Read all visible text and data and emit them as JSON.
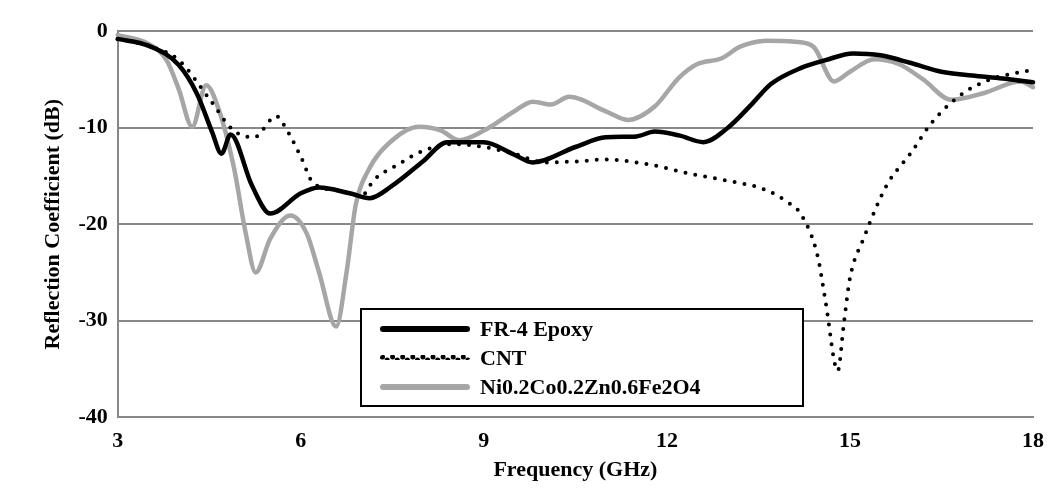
{
  "chart_data": {
    "type": "line",
    "xlabel": "Frequency (GHz)",
    "ylabel": "Reflection Coefficient (dB)",
    "xlim": [
      3,
      18
    ],
    "xticks": [
      3,
      6,
      9,
      12,
      15,
      18
    ],
    "ylim": [
      -40,
      0
    ],
    "yticks": [
      -40,
      -30,
      -20,
      -10,
      0
    ],
    "grid": "y",
    "legend": "bottom",
    "marker": "none",
    "series": [
      {
        "name": "FR-4 Epoxy",
        "color": "#000000",
        "line_style": "solid",
        "x": [
          3,
          3.5,
          4,
          4.3,
          4.55,
          4.7,
          4.85,
          5.2,
          5.5,
          6.0,
          6.3,
          6.8,
          7.13,
          7.5,
          8.0,
          8.4,
          9.0,
          9.5,
          9.8,
          10.5,
          11.0,
          11.5,
          11.8,
          12.2,
          12.6,
          13.0,
          13.4,
          13.7,
          14.2,
          14.6,
          15.05,
          15.5,
          16.0,
          16.5,
          17.0,
          17.5,
          18
        ],
        "values": [
          -0.8,
          -1.5,
          -3.5,
          -6.5,
          -10.5,
          -12.7,
          -10.7,
          -16,
          -18.9,
          -16.8,
          -16.2,
          -16.8,
          -17.3,
          -16,
          -13.5,
          -11.5,
          -11.5,
          -12.8,
          -13.6,
          -12,
          -11,
          -10.9,
          -10.4,
          -10.8,
          -11.5,
          -10,
          -7.5,
          -5.5,
          -3.8,
          -3,
          -2.3,
          -2.5,
          -3.3,
          -4.2,
          -4.6,
          -4.9,
          -5.3
        ]
      },
      {
        "name": "CNT",
        "color": "#000000",
        "line_style": "dotted",
        "x": [
          3,
          3.5,
          4,
          4.5,
          4.9,
          5.23,
          5.6,
          5.75,
          6.0,
          6.2,
          6.6,
          7.0,
          7.2,
          7.6,
          8.0,
          8.5,
          9.0,
          9.5,
          10.0,
          10.5,
          11.0,
          11.7,
          12.4,
          13.0,
          13.6,
          14.0,
          14.2,
          14.47,
          14.6,
          14.8,
          14.9,
          15.0,
          15.23,
          15.6,
          16.0,
          16.35,
          16.84,
          17.3,
          18
        ],
        "values": [
          -0.8,
          -1.5,
          -3,
          -7,
          -10.3,
          -11,
          -8.8,
          -10,
          -13,
          -15.7,
          -16.5,
          -17,
          -15.4,
          -13.8,
          -12.4,
          -11.7,
          -12,
          -12.7,
          -13.6,
          -13.5,
          -13.3,
          -13.8,
          -14.8,
          -15.5,
          -16.4,
          -17.8,
          -19,
          -23.3,
          -28,
          -35.2,
          -30.3,
          -25.6,
          -21.4,
          -16,
          -12.6,
          -9.4,
          -6.5,
          -5,
          -4.0
        ]
      },
      {
        "name": "Ni0.2Co0.2Zn0.6Fe2O4",
        "color": "#a6a6a6",
        "line_style": "solid",
        "x": [
          3,
          3.5,
          3.8,
          4.0,
          4.22,
          4.45,
          4.65,
          4.9,
          5.1,
          5.26,
          5.5,
          5.83,
          6.1,
          6.3,
          6.58,
          6.75,
          6.9,
          7.1,
          7.5,
          7.94,
          8.3,
          8.59,
          9.0,
          9.5,
          9.8,
          10.1,
          10.4,
          11.0,
          11.36,
          11.8,
          12.2,
          12.5,
          12.9,
          13.2,
          13.63,
          14.1,
          14.4,
          14.74,
          15.0,
          15.4,
          15.8,
          16.2,
          16.66,
          17.2,
          17.8,
          18
        ],
        "values": [
          -0.4,
          -1.3,
          -3,
          -6,
          -9.9,
          -5.6,
          -8,
          -14,
          -21,
          -25,
          -21.5,
          -19.1,
          -21,
          -25,
          -30.6,
          -25,
          -18,
          -14.5,
          -11.3,
          -9.9,
          -10.3,
          -11.3,
          -10.3,
          -8.3,
          -7.3,
          -7.6,
          -6.8,
          -8.3,
          -9.2,
          -7.8,
          -4.8,
          -3.4,
          -2.8,
          -1.6,
          -1,
          -1.1,
          -1.6,
          -5.2,
          -4.2,
          -2.9,
          -3.4,
          -5,
          -7.1,
          -6.4,
          -5.2,
          -5.8
        ]
      }
    ]
  }
}
